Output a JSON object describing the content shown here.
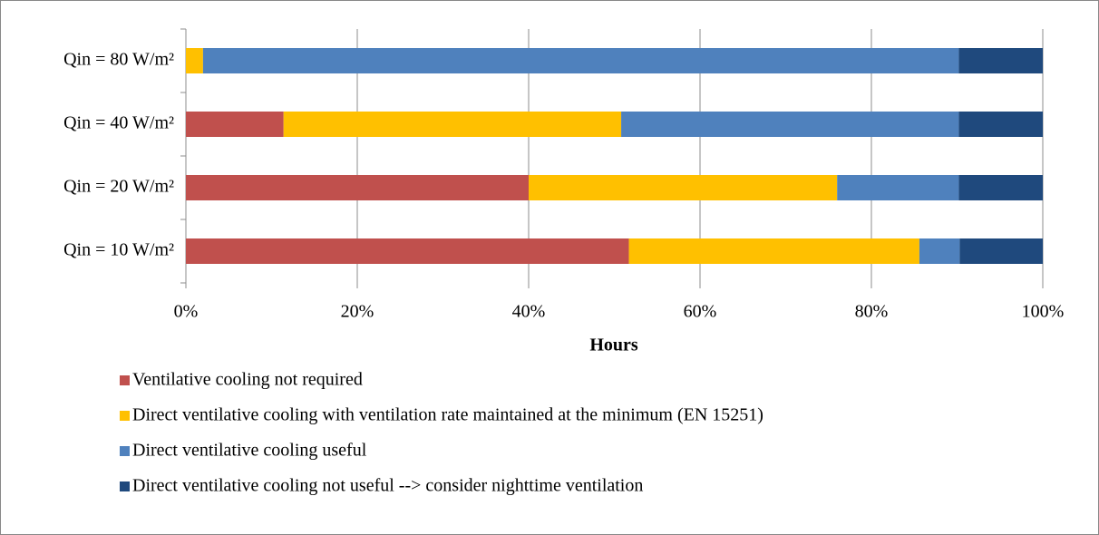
{
  "chart_data": {
    "type": "stacked-bar-horizontal",
    "categories": [
      "Qin = 80 W/m²",
      "Qin = 40 W/m²",
      "Qin = 20 W/m²",
      "Qin = 10 W/m²"
    ],
    "series": [
      {
        "name": "Ventilative cooling not required",
        "color": "#c0504d",
        "values": [
          0,
          11.4,
          40.0,
          51.7
        ]
      },
      {
        "name": "Direct ventilative cooling with ventilation rate maintained at the minimum (EN 15251)",
        "color": "#ffc000",
        "values": [
          2.0,
          39.4,
          36.0,
          33.9
        ]
      },
      {
        "name": "Direct ventilative cooling useful",
        "color": "#4f81bd",
        "values": [
          88.2,
          39.4,
          14.2,
          4.7
        ]
      },
      {
        "name": "Direct ventilative cooling not useful --> consider nighttime ventilation",
        "color": "#1f497d",
        "values": [
          9.8,
          9.8,
          9.8,
          9.7
        ]
      }
    ],
    "x_label": "Hours",
    "xlim": [
      0,
      100
    ],
    "xticks": [
      {
        "value": 0,
        "label": "0%"
      },
      {
        "value": 20,
        "label": "20%"
      },
      {
        "value": 40,
        "label": "40%"
      },
      {
        "value": 60,
        "label": "60%"
      },
      {
        "value": 80,
        "label": "80%"
      },
      {
        "value": 100,
        "label": "100%"
      }
    ],
    "grid": true,
    "legend": "bottom"
  }
}
